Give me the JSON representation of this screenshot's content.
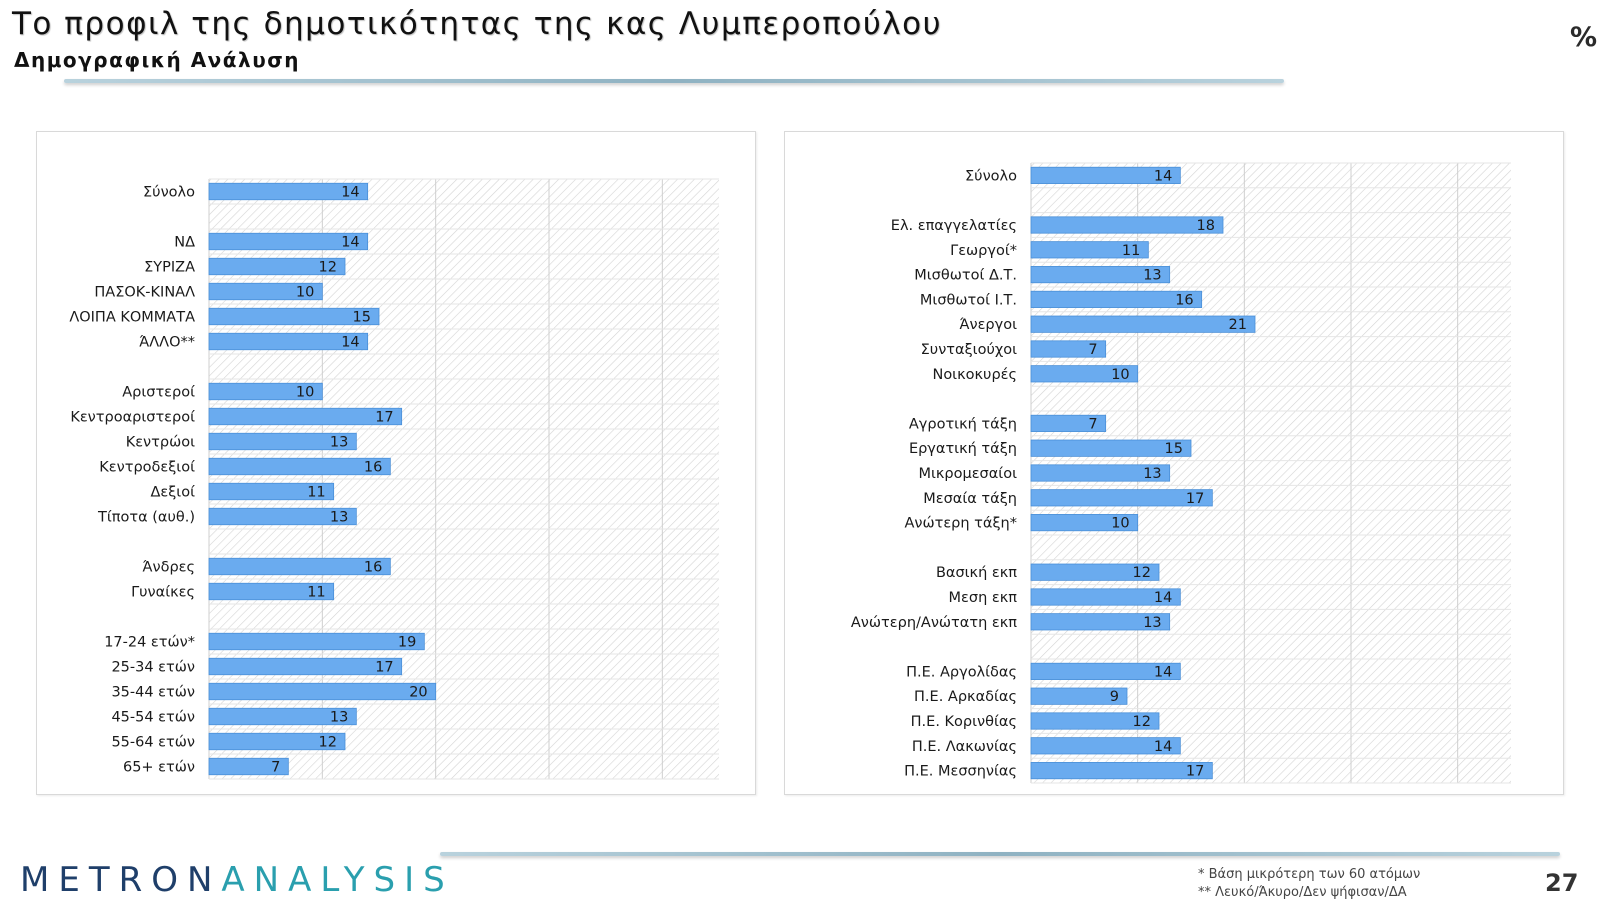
{
  "title": "Το προφιλ της δημοτικότητας της κας Λυμπεροπούλου",
  "subtitle": "Δημογραφική Ανάλυση",
  "unit_label": "%",
  "logo": {
    "part_a": "METRON",
    "part_b": "ANALYSIS"
  },
  "footnotes": [
    "*  Βάση μικρότερη των 60 ατόμων",
    "** Λευκό/Άκυρο/Δεν ψήφισαν/ΔΑ"
  ],
  "page_number": "27",
  "colors": {
    "bar": "#6aabef",
    "bar_edge": "#4a8fd8",
    "hatch": "#d4d4d4",
    "grid": "#cfcfcf"
  },
  "chart_data": [
    {
      "type": "bar",
      "orientation": "horizontal",
      "xlim": [
        0,
        45
      ],
      "categories": [
        "Σύνολο",
        "",
        "ΝΔ",
        "ΣΥΡΙΖΑ",
        "ΠΑΣΟΚ-ΚΙΝΑΛ",
        "ΛΟΙΠΑ ΚΟΜΜΑΤΑ",
        "ΆΛΛΟ**",
        "",
        "Αριστεροί",
        "Κεντροαριστεροί",
        "Κεντρώοι",
        "Κεντροδεξιοί",
        "Δεξιοί",
        "Τίποτα (αυθ.)",
        "",
        "Άνδρες",
        "Γυναίκες",
        "",
        "17-24 ετών*",
        "25-34 ετών",
        "35-44 ετών",
        "45-54 ετών",
        "55-64 ετών",
        "65+ ετών"
      ],
      "values": [
        14,
        null,
        14,
        12,
        10,
        15,
        14,
        null,
        10,
        17,
        13,
        16,
        11,
        13,
        null,
        16,
        11,
        null,
        19,
        17,
        20,
        13,
        12,
        7
      ]
    },
    {
      "type": "bar",
      "orientation": "horizontal",
      "xlim": [
        0,
        45
      ],
      "categories": [
        "Σύνολο",
        "",
        "Ελ. επαγγελατίες",
        "Γεωργοί*",
        "Μισθωτοί Δ.Τ.",
        "Μισθωτοί Ι.Τ.",
        "Άνεργοι",
        "Συνταξιούχοι",
        "Νοικοκυρές",
        "",
        "Αγροτική τάξη",
        "Εργατική τάξη",
        "Μικρομεσαίοι",
        "Μεσαία τάξη",
        "Ανώτερη τάξη*",
        "",
        "Βασική εκπ",
        "Μεση εκπ",
        "Ανώτερη/Ανώτατη εκπ",
        "",
        "Π.Ε. Αργολίδας",
        "Π.Ε. Αρκαδίας",
        "Π.Ε. Κορινθίας",
        "Π.Ε. Λακωνίας",
        "Π.Ε. Μεσσηνίας"
      ],
      "values": [
        14,
        null,
        18,
        11,
        13,
        16,
        21,
        7,
        10,
        null,
        7,
        15,
        13,
        17,
        10,
        null,
        12,
        14,
        13,
        null,
        14,
        9,
        12,
        14,
        17
      ]
    }
  ]
}
